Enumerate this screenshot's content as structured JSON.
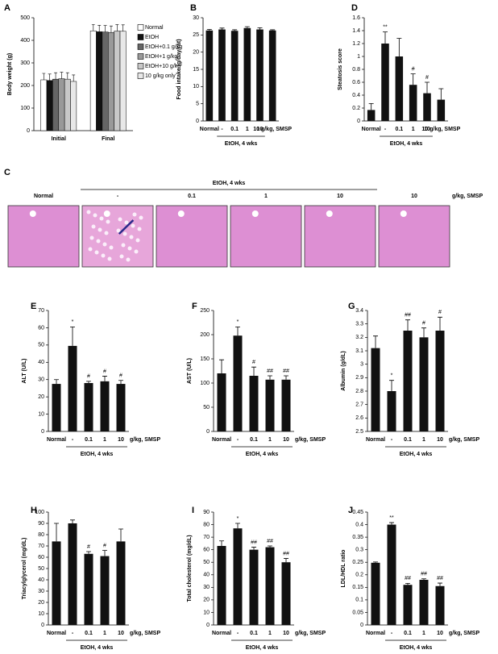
{
  "chart_data": [
    {
      "type": "grouped_bar",
      "label": "A",
      "y_label": "Body weight (g)",
      "categories": [
        "Initial",
        "Final"
      ],
      "series": [
        {
          "name": "Normal",
          "color": "#ffffff",
          "values": [
            225,
            442
          ]
        },
        {
          "name": "EtOH",
          "color": "#111111",
          "values": [
            222,
            438
          ]
        },
        {
          "name": "EtOH+0.1 g/kg",
          "color": "#666666",
          "values": [
            228,
            437
          ]
        },
        {
          "name": "EtOH+1 g/kg",
          "color": "#999999",
          "values": [
            230,
            435
          ]
        },
        {
          "name": "EtOH+10 g/kg",
          "color": "#c8c8c8",
          "values": [
            228,
            441
          ]
        },
        {
          "name": "10 g/kg only",
          "color": "#e8e8e8",
          "values": [
            218,
            440
          ]
        }
      ],
      "ylim": [
        0,
        500
      ],
      "yticks": [
        0,
        100,
        200,
        300,
        400,
        500
      ]
    },
    {
      "type": "bar",
      "label": "B",
      "y_label": "Food intake (g/day/rat)",
      "group_label": "EtOH, 4 wks",
      "categories": [
        "Normal",
        "-",
        "0.1",
        "1",
        "10",
        "10 g/kg, SMSP"
      ],
      "values": [
        26.3,
        26.6,
        26.2,
        27.0,
        26.6,
        26.3
      ],
      "errors": [
        0.3,
        0.4,
        0.3,
        0.4,
        0.5,
        0.2
      ],
      "color": "#111111",
      "ylim": [
        0,
        30
      ],
      "yticks": [
        0,
        5,
        10,
        15,
        20,
        25,
        30
      ]
    },
    {
      "type": "bar",
      "label": "D",
      "y_label": "Steatosis score",
      "group_label": "EtOH, 4 wks",
      "categories": [
        "Normal",
        "-",
        "0.1",
        "1",
        "10",
        "10 g/kg, SMSP"
      ],
      "values": [
        0.17,
        1.2,
        1.0,
        0.56,
        0.43,
        0.33
      ],
      "errors": [
        0.1,
        0.18,
        0.28,
        0.17,
        0.17,
        0.17
      ],
      "annotations": [
        null,
        "**",
        null,
        "#",
        "#",
        null
      ],
      "color": "#111111",
      "ylim": [
        0,
        1.6
      ],
      "yticks": [
        0,
        0.2,
        0.4,
        0.6,
        0.8,
        1,
        1.2,
        1.4,
        1.6
      ]
    },
    {
      "type": "image",
      "label": "C",
      "group_label": "EtOH, 4 wks",
      "categories": [
        "Normal",
        "-",
        "0.1",
        "1",
        "10",
        "10"
      ],
      "x_note": "g/kg, SMSP"
    },
    {
      "type": "bar",
      "label": "E",
      "y_label": "ALT (U/L)",
      "group_label": "EtOH, 4 wks",
      "x_note": "g/kg, SMSP",
      "categories": [
        "Normal",
        "-",
        "0.1",
        "1",
        "10"
      ],
      "values": [
        27.5,
        49.5,
        28,
        29,
        27.5
      ],
      "errors": [
        2.5,
        11,
        1,
        3,
        2
      ],
      "annotations": [
        null,
        "*",
        "#",
        "#",
        "#"
      ],
      "color": "#111111",
      "ylim": [
        0,
        70
      ],
      "yticks": [
        0,
        10,
        20,
        30,
        40,
        50,
        60,
        70
      ]
    },
    {
      "type": "bar",
      "label": "F",
      "y_label": "AST (U/L)",
      "group_label": "EtOH, 4 wks",
      "x_note": "g/kg, SMSP",
      "categories": [
        "Normal",
        "-",
        "0.1",
        "1",
        "10"
      ],
      "values": [
        120,
        198,
        115,
        107,
        107
      ],
      "errors": [
        28,
        18,
        18,
        8,
        8
      ],
      "annotations": [
        null,
        "*",
        "#",
        "##",
        "##"
      ],
      "color": "#111111",
      "ylim": [
        0,
        250
      ],
      "yticks": [
        0,
        50,
        100,
        150,
        200,
        250
      ]
    },
    {
      "type": "bar",
      "label": "G",
      "y_label": "Albumin (g/dL)",
      "group_label": "EtOH, 4 wks",
      "x_note": "g/kg, SMSP",
      "categories": [
        "Normal",
        "-",
        "0.1",
        "1",
        "10"
      ],
      "values": [
        3.12,
        2.8,
        3.25,
        3.2,
        3.25
      ],
      "errors": [
        0.09,
        0.08,
        0.08,
        0.07,
        0.1
      ],
      "annotations": [
        null,
        "*",
        "##",
        "#",
        "#"
      ],
      "color": "#111111",
      "ylim": [
        2.5,
        3.4
      ],
      "yticks": [
        2.5,
        2.6,
        2.7,
        2.8,
        2.9,
        3,
        3.1,
        3.2,
        3.3,
        3.4
      ]
    },
    {
      "type": "bar",
      "label": "H",
      "y_label": "Triacylglycerol (mg/dL)",
      "group_label": "EtOH, 4 wks",
      "x_note": "g/kg, SMSP",
      "categories": [
        "Normal",
        "-",
        "0.1",
        "1",
        "10"
      ],
      "values": [
        74,
        90,
        63,
        61,
        74
      ],
      "errors": [
        16,
        3,
        2,
        5,
        11
      ],
      "annotations": [
        null,
        null,
        "#",
        "#",
        null
      ],
      "color": "#111111",
      "ylim": [
        0,
        100
      ],
      "yticks": [
        0,
        10,
        20,
        30,
        40,
        50,
        60,
        70,
        80,
        90,
        100
      ]
    },
    {
      "type": "bar",
      "label": "I",
      "y_label": "Total cholesterol (mg/dL)",
      "group_label": "EtOH, 4 wks",
      "x_note": "g/kg, SMSP",
      "categories": [
        "Normal",
        "-",
        "0.1",
        "1",
        "10"
      ],
      "values": [
        63,
        77,
        60,
        62,
        50
      ],
      "errors": [
        4,
        4,
        2,
        1,
        3
      ],
      "annotations": [
        null,
        "*",
        "##",
        "##",
        "##"
      ],
      "color": "#111111",
      "ylim": [
        0,
        90
      ],
      "yticks": [
        0,
        10,
        20,
        30,
        40,
        50,
        60,
        70,
        80,
        90
      ]
    },
    {
      "type": "bar",
      "label": "J",
      "y_label": "LDL/HDL ratio",
      "group_label": "EtOH, 4 wks",
      "x_note": "g/kg, SMSP",
      "categories": [
        "Normal",
        "-",
        "0.1",
        "1",
        "10"
      ],
      "values": [
        0.248,
        0.4,
        0.16,
        0.18,
        0.155
      ],
      "errors": [
        0.003,
        0.008,
        0.006,
        0.004,
        0.012
      ],
      "annotations": [
        null,
        "**",
        "##",
        "##",
        "##"
      ],
      "color": "#111111",
      "ylim": [
        0,
        0.45
      ],
      "yticks": [
        0,
        0.05,
        0.1,
        0.15,
        0.2,
        0.25,
        0.3,
        0.35,
        0.4,
        0.45
      ]
    }
  ]
}
